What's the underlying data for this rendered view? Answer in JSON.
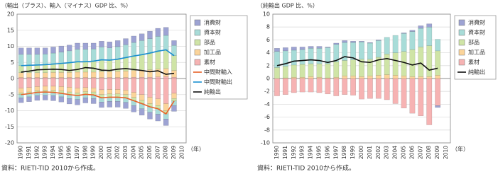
{
  "chart_data": [
    {
      "type": "bar",
      "y_axis_title": "（輸出（プラス）、輸入（マイナス）GDP 比、%）",
      "x_axis_title": "（年）",
      "source": "資料：RIETI-TID 2010から作成。",
      "categories": [
        "1990",
        "1991",
        "1992",
        "1993",
        "1994",
        "1995",
        "1996",
        "1997",
        "1998",
        "1999",
        "2000",
        "2001",
        "2002",
        "2003",
        "2004",
        "2005",
        "2006",
        "2007",
        "2008",
        "2009",
        "2010"
      ],
      "ylim": [
        -20,
        20
      ],
      "yticks": [
        -20,
        -15,
        -10,
        -5,
        0,
        5,
        10,
        15,
        20
      ],
      "grid": true,
      "series": [
        {
          "name": "消費財",
          "color": "#9da3d3",
          "values": [
            2.0,
            2.0,
            2.0,
            1.9,
            1.9,
            1.9,
            1.8,
            1.9,
            1.9,
            1.8,
            1.8,
            1.9,
            1.9,
            1.9,
            2.0,
            2.1,
            2.3,
            2.5,
            2.5,
            1.5,
            null
          ],
          "import_values": [
            -1.5,
            -1.5,
            -1.5,
            -1.5,
            -1.6,
            -1.6,
            -1.7,
            -1.7,
            -1.6,
            -1.6,
            -1.7,
            -1.8,
            -1.8,
            -1.9,
            -2.0,
            -2.0,
            -2.1,
            -2.1,
            -2.0,
            -1.8,
            null
          ]
        },
        {
          "name": "資本財",
          "color": "#a8dcd8",
          "values": [
            3.5,
            3.4,
            3.3,
            3.3,
            3.4,
            3.5,
            3.7,
            3.9,
            3.9,
            3.8,
            4.0,
            3.8,
            3.9,
            4.0,
            4.2,
            4.4,
            4.5,
            4.6,
            4.5,
            3.2,
            null
          ],
          "import_values": [
            -1.0,
            -1.0,
            -1.0,
            -1.0,
            -1.0,
            -1.1,
            -1.2,
            -1.2,
            -1.1,
            -1.1,
            -1.3,
            -1.3,
            -1.3,
            -1.4,
            -1.5,
            -1.6,
            -1.7,
            -1.7,
            -1.6,
            -1.4,
            null
          ]
        },
        {
          "name": "部品",
          "color": "#cfe4a6",
          "values": [
            2.2,
            2.3,
            2.4,
            2.5,
            2.6,
            2.8,
            3.0,
            3.2,
            3.2,
            3.4,
            3.7,
            3.6,
            3.8,
            4.2,
            4.5,
            4.8,
            5.2,
            5.6,
            5.8,
            4.6,
            null
          ],
          "import_values": [
            -0.5,
            -0.5,
            -0.5,
            -0.5,
            -0.6,
            -0.7,
            -0.8,
            -0.8,
            -0.8,
            -0.9,
            -1.0,
            -1.0,
            -1.0,
            -1.0,
            -1.0,
            -1.0,
            -1.0,
            -1.0,
            -1.0,
            -0.8,
            null
          ]
        },
        {
          "name": "加工品",
          "color": "#fbd49a",
          "values": [
            1.5,
            1.5,
            1.5,
            1.5,
            1.6,
            1.6,
            1.6,
            1.7,
            1.7,
            1.7,
            1.8,
            1.8,
            1.9,
            2.0,
            2.1,
            2.2,
            2.3,
            2.4,
            2.5,
            2.1,
            null
          ],
          "import_values": [
            -1.5,
            -1.4,
            -1.3,
            -1.3,
            -1.3,
            -1.4,
            -1.5,
            -1.5,
            -1.3,
            -1.3,
            -1.5,
            -1.4,
            -1.4,
            -1.4,
            -1.6,
            -1.8,
            -2.0,
            -2.1,
            -2.2,
            -1.6,
            null
          ]
        },
        {
          "name": "素材",
          "color": "#f6b3b3",
          "values": [
            0.3,
            0.3,
            0.3,
            0.3,
            0.3,
            0.3,
            0.3,
            0.3,
            0.3,
            0.3,
            0.3,
            0.3,
            0.3,
            0.3,
            0.4,
            0.4,
            0.4,
            0.5,
            0.6,
            0.4,
            null
          ],
          "import_values": [
            -3.0,
            -2.8,
            -2.5,
            -2.4,
            -2.4,
            -2.5,
            -2.7,
            -3.0,
            -2.8,
            -2.9,
            -3.5,
            -3.4,
            -3.4,
            -3.6,
            -4.3,
            -5.0,
            -5.8,
            -6.3,
            -7.8,
            -4.6,
            null
          ]
        }
      ],
      "lines": [
        {
          "name": "中間財輸入",
          "color": "#e8632a",
          "values": [
            -5.0,
            -4.7,
            -4.3,
            -4.2,
            -4.3,
            -4.6,
            -5.0,
            -5.3,
            -4.9,
            -5.1,
            -6.0,
            -5.8,
            -5.8,
            -6.0,
            -6.9,
            -7.8,
            -8.8,
            -9.4,
            -11.0,
            -7.0,
            null
          ]
        },
        {
          "name": "中間財輸出",
          "color": "#1b8fd0",
          "values": [
            4.0,
            4.1,
            4.2,
            4.3,
            4.5,
            4.7,
            4.9,
            5.2,
            5.2,
            5.4,
            5.8,
            5.7,
            6.0,
            6.5,
            7.0,
            7.4,
            7.9,
            8.5,
            8.9,
            7.1,
            null
          ]
        },
        {
          "name": "純輸出",
          "color": "#111111",
          "values": [
            2.0,
            2.3,
            2.7,
            2.8,
            2.9,
            2.8,
            2.5,
            2.8,
            3.4,
            3.2,
            2.6,
            2.5,
            2.9,
            3.1,
            2.8,
            2.5,
            2.1,
            2.4,
            1.3,
            1.6,
            null
          ]
        }
      ]
    },
    {
      "type": "bar",
      "y_axis_title": "（純輸出 GDP 比、%）",
      "x_axis_title": "（年）",
      "source": "資料：RIETI-TID 2010から作成。",
      "categories": [
        "1990",
        "1991",
        "1992",
        "1993",
        "1994",
        "1995",
        "1996",
        "1997",
        "1998",
        "1999",
        "2000",
        "2001",
        "2002",
        "2003",
        "2004",
        "2005",
        "2006",
        "2007",
        "2008",
        "2009",
        "2010"
      ],
      "ylim": [
        -10,
        10
      ],
      "yticks": [
        -10,
        -8,
        -6,
        -4,
        -2,
        0,
        2,
        4,
        6,
        8,
        10
      ],
      "grid": true,
      "series": [
        {
          "name": "消費財",
          "color": "#9da3d3",
          "values": [
            0.5,
            0.5,
            0.5,
            0.4,
            0.3,
            0.3,
            0.1,
            0.2,
            0.3,
            0.2,
            0.1,
            0.1,
            0.1,
            0.0,
            0.0,
            0.1,
            0.2,
            0.4,
            0.5,
            -0.3,
            null
          ]
        },
        {
          "name": "資本財",
          "color": "#a8dcd8",
          "values": [
            2.5,
            2.4,
            2.3,
            2.3,
            2.4,
            2.4,
            2.5,
            2.7,
            2.8,
            2.7,
            2.7,
            2.5,
            2.6,
            2.6,
            2.7,
            2.8,
            2.8,
            2.9,
            2.9,
            1.8,
            null
          ]
        },
        {
          "name": "部品",
          "color": "#cfe4a6",
          "values": [
            1.7,
            1.8,
            1.9,
            2.0,
            2.0,
            2.1,
            2.2,
            2.4,
            2.4,
            2.5,
            2.7,
            2.6,
            2.8,
            3.2,
            3.5,
            3.8,
            4.2,
            4.6,
            4.8,
            3.8,
            null
          ]
        },
        {
          "name": "加工品",
          "color": "#fbd49a",
          "values": [
            0.0,
            0.1,
            0.2,
            0.2,
            0.3,
            0.2,
            0.1,
            0.2,
            0.4,
            0.4,
            0.3,
            0.4,
            0.5,
            0.6,
            0.5,
            0.4,
            0.3,
            0.3,
            0.3,
            0.5,
            null
          ]
        },
        {
          "name": "素材",
          "color": "#f6b3b3",
          "values": [
            -2.7,
            -2.5,
            -2.2,
            -2.1,
            -2.1,
            -2.2,
            -2.4,
            -2.7,
            -2.5,
            -2.6,
            -3.2,
            -3.1,
            -3.1,
            -3.3,
            -3.9,
            -4.6,
            -5.4,
            -5.8,
            -7.2,
            -4.2,
            null
          ]
        }
      ],
      "lines": [
        {
          "name": "純輸出",
          "color": "#111111",
          "values": [
            2.0,
            2.3,
            2.7,
            2.8,
            2.9,
            2.8,
            2.5,
            2.8,
            3.4,
            3.2,
            2.6,
            2.5,
            2.9,
            3.1,
            2.8,
            2.5,
            2.1,
            2.4,
            1.3,
            1.6,
            null
          ]
        }
      ]
    }
  ]
}
